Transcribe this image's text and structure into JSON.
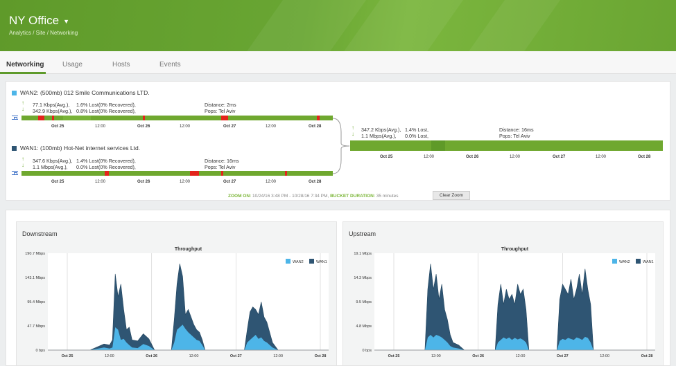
{
  "header": {
    "title": "NY Office",
    "breadcrumb": "Analytics / Site / Networking"
  },
  "tabs": [
    {
      "label": "Networking",
      "active": true
    },
    {
      "label": "Usage"
    },
    {
      "label": "Hosts"
    },
    {
      "label": "Events"
    }
  ],
  "colors": {
    "accent": "#5e9a2b",
    "wan2": "#4db5e8",
    "wan1": "#2f5573",
    "lost": "#e3241b",
    "good": "#6fa82f"
  },
  "wan2": {
    "label": "WAN2: (500mb) 012 Smile Communications LTD.",
    "up_kbps": "77.1 Kbps(Avg.),",
    "up_lost": "1.6% Lost(0% Recovered),",
    "down_kbps": "342.9 Kbps(Avg.),",
    "down_lost": "0.8% Lost(0% Recovered),",
    "distance": "Distance: 2ms",
    "pops": "Pops: Tel Aviv"
  },
  "wan1": {
    "label": "WAN1: (100mb) Hot-Net internet services Ltd.",
    "up_kbps": "347.6 Kbps(Avg.),",
    "up_lost": "1.4% Lost(0% Recovered),",
    "down_kbps": "1.1 Mbps(Avg.),",
    "down_lost": "0.0% Lost(0% Recovered),",
    "distance": "Distance: 16ms",
    "pops": "Pops: Tel Aviv"
  },
  "combined": {
    "up_kbps": "347.2 Kbps(Avg.),",
    "up_lost": "1.4% Lost,",
    "down_kbps": "1.1 Mbps(Avg.),",
    "down_lost": "0.0% Lost,",
    "distance": "Distance: 16ms",
    "pops": "Pops: Tel Aviv"
  },
  "timeline_ticks": [
    "Oct 25",
    "12:00",
    "Oct 26",
    "12:00",
    "Oct 27",
    "12:00",
    "Oct 28"
  ],
  "zoom": {
    "label": "ZOOM ON:",
    "range": "10/24/16 3:48 PM - 10/28/16 7:34 PM,",
    "bucket_label": "BUCKET DURATION:",
    "bucket_value": "35 minutes"
  },
  "clear_zoom": "Clear Zoom",
  "chart_data": [
    {
      "type": "area",
      "panel_title": "Downstream",
      "title": "Throughput",
      "yticks": [
        "190.7 Mbps",
        "143.1 Mbps",
        "95.4 Mbps",
        "47.7 Mbps",
        "0 bps"
      ],
      "ylim": [
        0,
        190.7
      ],
      "xticks": [
        "Oct 25",
        "12:00",
        "Oct 26",
        "12:00",
        "Oct 27",
        "12:00",
        "Oct 28"
      ],
      "x": [
        0,
        0.05,
        0.1,
        0.15,
        0.2,
        0.22,
        0.23,
        0.24,
        0.25,
        0.26,
        0.27,
        0.28,
        0.29,
        0.3,
        0.32,
        0.34,
        0.36,
        0.38,
        0.4,
        0.42,
        0.44,
        0.45,
        0.46,
        0.47,
        0.48,
        0.49,
        0.5,
        0.51,
        0.52,
        0.53,
        0.54,
        0.55,
        0.56,
        0.58,
        0.6,
        0.62,
        0.64,
        0.66,
        0.68,
        0.7,
        0.71,
        0.72,
        0.73,
        0.74,
        0.75,
        0.76,
        0.77,
        0.78,
        0.8,
        0.82,
        0.85,
        0.9,
        0.95,
        1.0
      ],
      "series": [
        {
          "name": "WAN2",
          "values": [
            0,
            0,
            0,
            0,
            5,
            3,
            5,
            45,
            40,
            20,
            22,
            15,
            10,
            5,
            4,
            12,
            8,
            0,
            0,
            0,
            0,
            15,
            40,
            45,
            50,
            42,
            35,
            30,
            25,
            20,
            18,
            10,
            0,
            0,
            0,
            0,
            0,
            0,
            0,
            0,
            15,
            20,
            25,
            30,
            22,
            25,
            18,
            15,
            5,
            0,
            0,
            0,
            0,
            0
          ]
        },
        {
          "name": "WAN1",
          "values": [
            0,
            0,
            0,
            0,
            12,
            10,
            20,
            150,
            105,
            130,
            80,
            40,
            45,
            20,
            18,
            32,
            22,
            0,
            0,
            0,
            0,
            60,
            130,
            170,
            145,
            70,
            80,
            65,
            50,
            40,
            35,
            20,
            0,
            0,
            0,
            0,
            0,
            0,
            0,
            0,
            40,
            75,
            85,
            80,
            70,
            95,
            65,
            55,
            15,
            0,
            0,
            0,
            0,
            0
          ]
        }
      ]
    },
    {
      "type": "area",
      "panel_title": "Upstream",
      "title": "Throughput",
      "yticks": [
        "19.1 Mbps",
        "14.3 Mbps",
        "9.5 Mbps",
        "4.8 Mbps",
        "0 bps"
      ],
      "ylim": [
        0,
        19.1
      ],
      "xticks": [
        "Oct 25",
        "12:00",
        "Oct 26",
        "12:00",
        "Oct 27",
        "12:00",
        "Oct 28"
      ],
      "x": [
        0,
        0.1,
        0.18,
        0.19,
        0.2,
        0.21,
        0.22,
        0.23,
        0.24,
        0.25,
        0.26,
        0.27,
        0.28,
        0.3,
        0.32,
        0.36,
        0.4,
        0.43,
        0.44,
        0.45,
        0.46,
        0.47,
        0.48,
        0.49,
        0.5,
        0.51,
        0.52,
        0.53,
        0.54,
        0.55,
        0.6,
        0.65,
        0.66,
        0.67,
        0.68,
        0.69,
        0.7,
        0.71,
        0.72,
        0.73,
        0.74,
        0.75,
        0.76,
        0.77,
        0.78,
        0.8,
        0.85,
        0.9,
        1.0
      ],
      "series": [
        {
          "name": "WAN2",
          "values": [
            0,
            0,
            0,
            2.5,
            3,
            2.5,
            3,
            2.8,
            2.5,
            2,
            1.5,
            0.8,
            0.5,
            0.3,
            0,
            0,
            0,
            0,
            1.5,
            2,
            2.5,
            2.2,
            2.5,
            2,
            2.4,
            2.1,
            2.3,
            2,
            1.5,
            0,
            0,
            0,
            1.8,
            2.2,
            2,
            2.4,
            2.2,
            2,
            2.5,
            2.3,
            2,
            2.6,
            2.4,
            1.5,
            0,
            0,
            0,
            0,
            0
          ]
        },
        {
          "name": "WAN1",
          "values": [
            0,
            0,
            0,
            12,
            17,
            12,
            15,
            10,
            13,
            8,
            6,
            3,
            1.5,
            1,
            0,
            0,
            0,
            0,
            9,
            13,
            9,
            12,
            10,
            11,
            9,
            13,
            11,
            12,
            8,
            0,
            0,
            0,
            10,
            13,
            12,
            11,
            14,
            10,
            12,
            15,
            11,
            16,
            12,
            9,
            0,
            0,
            0,
            0,
            0
          ]
        }
      ]
    }
  ]
}
